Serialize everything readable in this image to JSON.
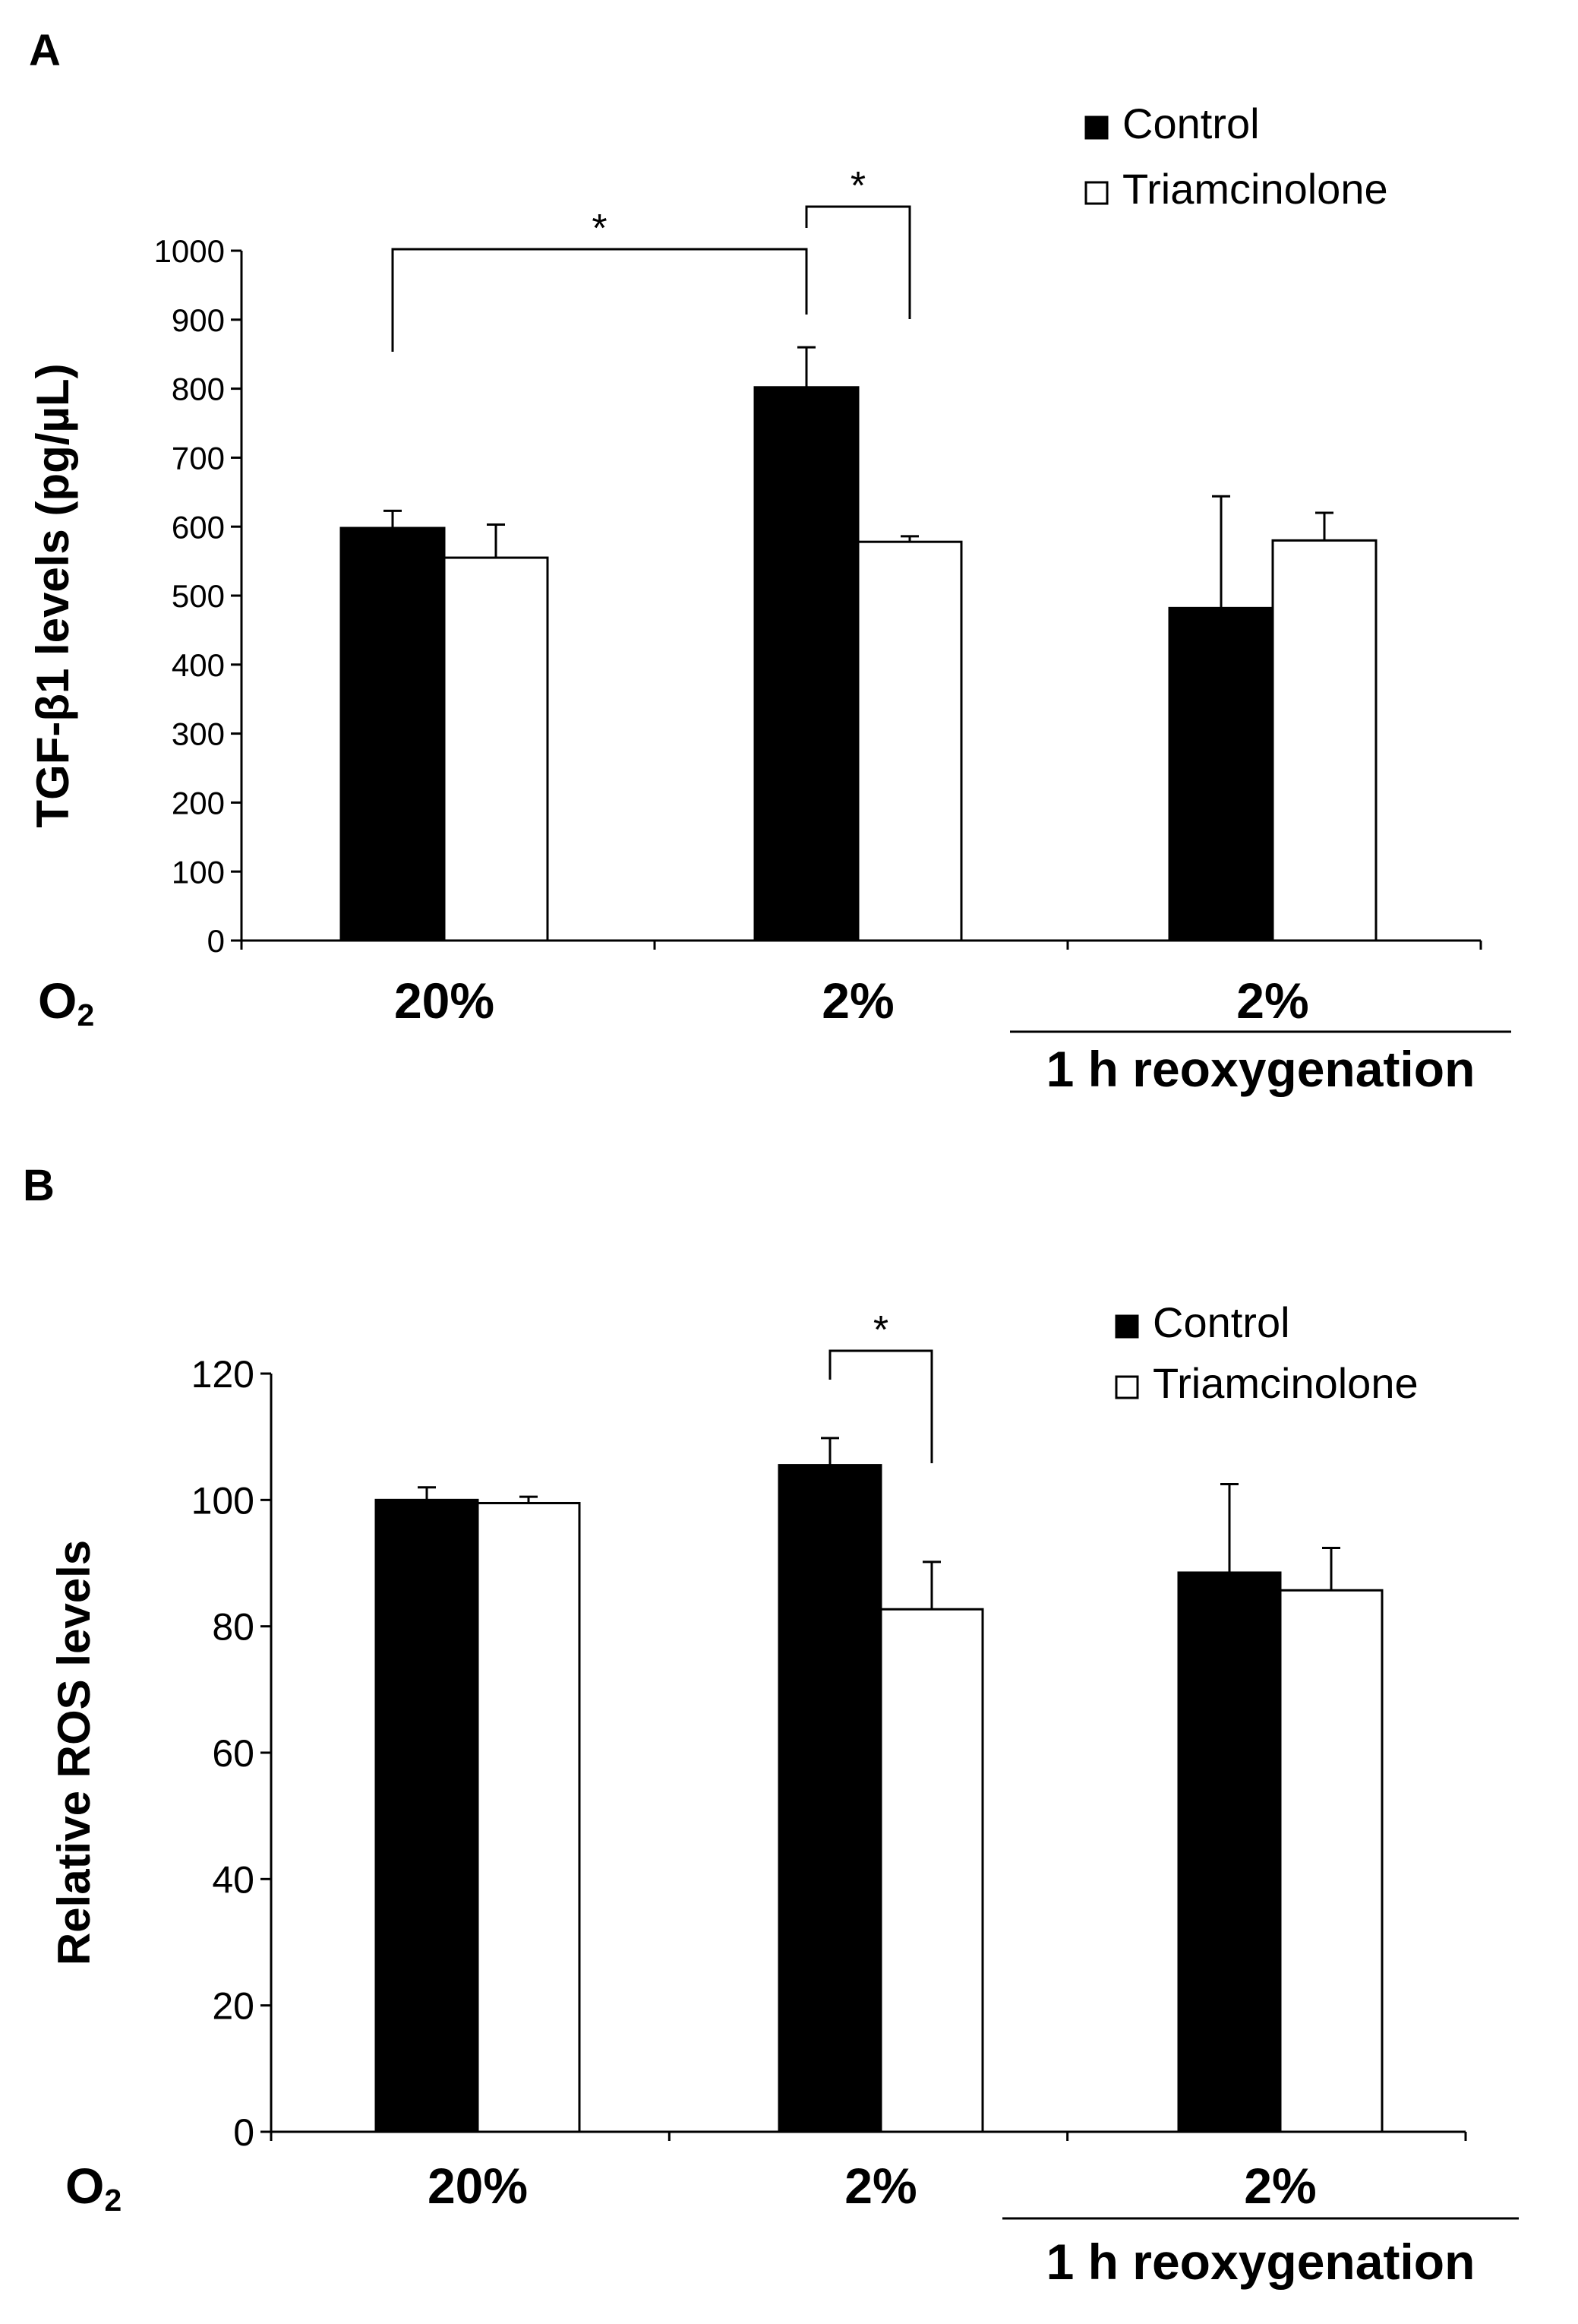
{
  "figure": {
    "panel_a_letter": "A",
    "panel_b_letter": "B"
  },
  "chart_data": [
    {
      "type": "bar",
      "panel": "A",
      "ylabel": "TGF-β1 levels (pg/µL)",
      "ylim": [
        0,
        1000
      ],
      "yticks": [
        0,
        100,
        200,
        300,
        400,
        500,
        600,
        700,
        800,
        900,
        1000
      ],
      "row_label_main": "O",
      "row_label_sub": "2",
      "categories": [
        "20%",
        "2%",
        "2%"
      ],
      "subgroup_label": "1 h reoxygenation",
      "legend": [
        "Control",
        "Triamcinolone"
      ],
      "series": [
        {
          "name": "Control",
          "color": "#000000",
          "values": [
            598,
            802,
            482
          ],
          "errors": [
            25,
            58,
            162
          ]
        },
        {
          "name": "Triamcinolone",
          "color": "#ffffff",
          "values": [
            555,
            578,
            580
          ],
          "errors": [
            48,
            8,
            40
          ]
        }
      ],
      "significance": [
        {
          "label": "*",
          "from": [
            0,
            0
          ],
          "to": [
            1,
            0
          ]
        },
        {
          "label": "*",
          "from": [
            1,
            0
          ],
          "to": [
            1,
            1
          ]
        }
      ]
    },
    {
      "type": "bar",
      "panel": "B",
      "ylabel": "Relative ROS levels",
      "ylim": [
        0,
        120
      ],
      "yticks": [
        0,
        20,
        40,
        60,
        80,
        100,
        120
      ],
      "row_label_main": "O",
      "row_label_sub": "2",
      "categories": [
        "20%",
        "2%",
        "2%"
      ],
      "subgroup_label": "1 h reoxygenation",
      "legend": [
        "Control",
        "Triamcinolone"
      ],
      "series": [
        {
          "name": "Control",
          "color": "#000000",
          "values": [
            100,
            105.5,
            88.5
          ],
          "errors": [
            2,
            4.3,
            14
          ]
        },
        {
          "name": "Triamcinolone",
          "color": "#ffffff",
          "values": [
            99.5,
            82.7,
            85.7
          ],
          "errors": [
            1,
            7.5,
            6.7
          ]
        }
      ],
      "significance": [
        {
          "label": "*",
          "from": [
            1,
            0
          ],
          "to": [
            1,
            1
          ]
        }
      ]
    }
  ]
}
